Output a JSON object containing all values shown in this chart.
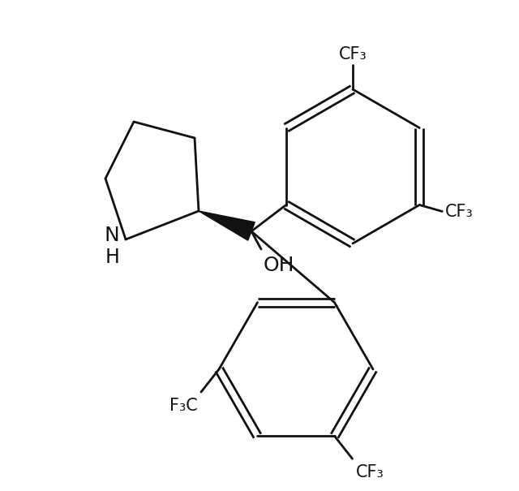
{
  "bg_color": "#ffffff",
  "line_color": "#111111",
  "line_width": 2.0,
  "font_size_label": 17,
  "font_size_cf3": 15,
  "figsize": [
    6.4,
    6.05
  ],
  "dpi": 100,
  "xlim": [
    0,
    640
  ],
  "ylim": [
    0,
    605
  ]
}
